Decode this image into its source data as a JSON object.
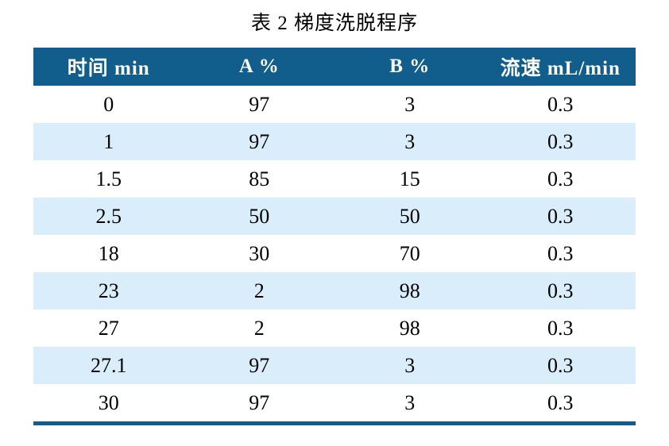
{
  "title": "表 2 梯度洗脱程序",
  "table": {
    "columns": [
      "时间 min",
      "A %",
      "B %",
      "流速 mL/min"
    ],
    "rows": [
      [
        "0",
        "97",
        "3",
        "0.3"
      ],
      [
        "1",
        "97",
        "3",
        "0.3"
      ],
      [
        "1.5",
        "85",
        "15",
        "0.3"
      ],
      [
        "2.5",
        "50",
        "50",
        "0.3"
      ],
      [
        "18",
        "30",
        "70",
        "0.3"
      ],
      [
        "23",
        "2",
        "98",
        "0.3"
      ],
      [
        "27",
        "2",
        "98",
        "0.3"
      ],
      [
        "27.1",
        "97",
        "3",
        "0.3"
      ],
      [
        "30",
        "97",
        "3",
        "0.3"
      ]
    ]
  },
  "colors": {
    "header_bg": "#115E8C",
    "header_text": "#FFFFFF",
    "stripe_bg": "#D9EEFA",
    "row_bg": "#FFFFFF",
    "bottom_border": "#115E8C",
    "body_text": "#000000"
  },
  "chart_data": {
    "type": "table",
    "title": "表 2 梯度洗脱程序",
    "columns": [
      "时间 min",
      "A %",
      "B %",
      "流速 mL/min"
    ],
    "rows": [
      [
        0,
        97,
        3,
        0.3
      ],
      [
        1,
        97,
        3,
        0.3
      ],
      [
        1.5,
        85,
        15,
        0.3
      ],
      [
        2.5,
        50,
        50,
        0.3
      ],
      [
        18,
        30,
        70,
        0.3
      ],
      [
        23,
        2,
        98,
        0.3
      ],
      [
        27,
        2,
        98,
        0.3
      ],
      [
        27.1,
        97,
        3,
        0.3
      ],
      [
        30,
        97,
        3,
        0.3
      ]
    ]
  }
}
